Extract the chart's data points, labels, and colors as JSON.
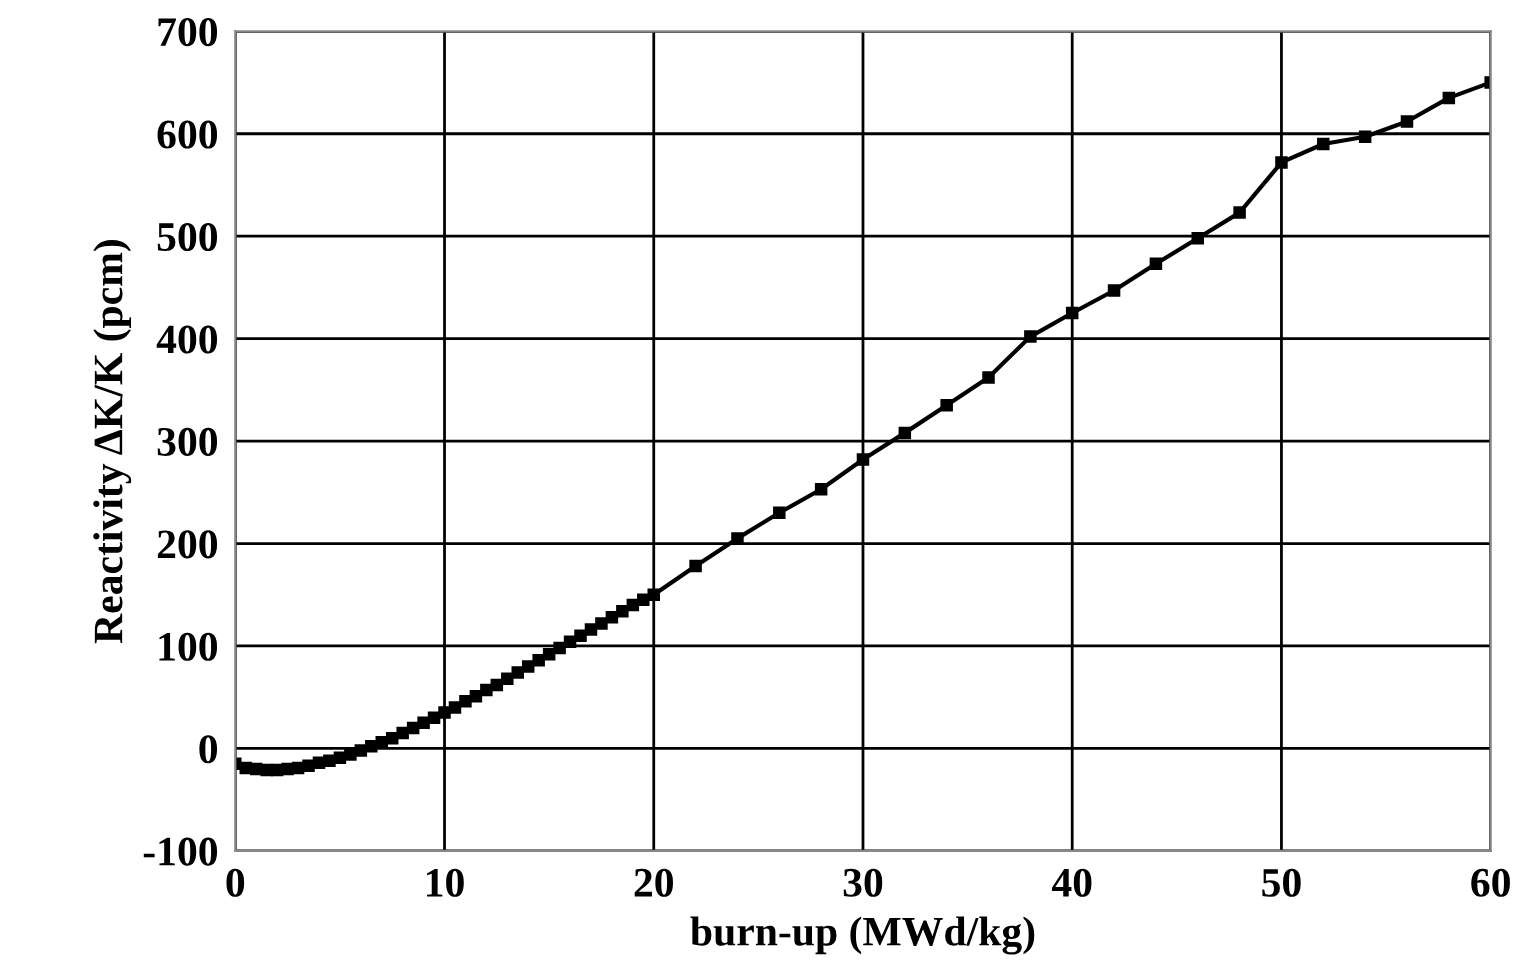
{
  "chart_data": {
    "type": "line",
    "xlabel": "burn-up (MWd/kg)",
    "ylabel": "Reactivity ΔK/K (pcm)",
    "x": [
      0,
      0.5,
      1,
      1.5,
      2,
      2.5,
      3,
      3.5,
      4,
      4.5,
      5,
      5.5,
      6,
      6.5,
      7,
      7.5,
      8,
      8.5,
      9,
      9.5,
      10,
      10.5,
      11,
      11.5,
      12,
      12.5,
      13,
      13.5,
      14,
      14.5,
      15,
      15.5,
      16,
      16.5,
      17,
      17.5,
      18,
      18.5,
      19,
      19.5,
      20,
      22,
      24,
      26,
      28,
      30,
      32,
      34,
      36,
      38,
      40,
      42,
      44,
      46,
      48,
      50,
      52,
      54,
      56,
      58,
      60
    ],
    "series": [
      {
        "color": "#000000",
        "values": [
          -15,
          -19,
          -20,
          -21,
          -21,
          -20,
          -19,
          -17,
          -14,
          -12,
          -9,
          -6,
          -2,
          2,
          6,
          10,
          15,
          20,
          25,
          30,
          35,
          40,
          46,
          51,
          57,
          62,
          68,
          74,
          80,
          86,
          92,
          98,
          104,
          110,
          116,
          122,
          128,
          134,
          140,
          145,
          150,
          178,
          205,
          230,
          253,
          282,
          308,
          335,
          362,
          402,
          425,
          447,
          473,
          498,
          523,
          572,
          590,
          597,
          612,
          635,
          650
        ]
      }
    ],
    "xlim": [
      0,
      60
    ],
    "xticks": [
      0,
      10,
      20,
      30,
      40,
      50,
      60
    ],
    "ylim": [
      -100,
      700
    ],
    "yticks": [
      -100,
      0,
      100,
      200,
      300,
      400,
      500,
      600,
      700
    ],
    "grid": true,
    "marker": "square",
    "line_style": "solid"
  }
}
